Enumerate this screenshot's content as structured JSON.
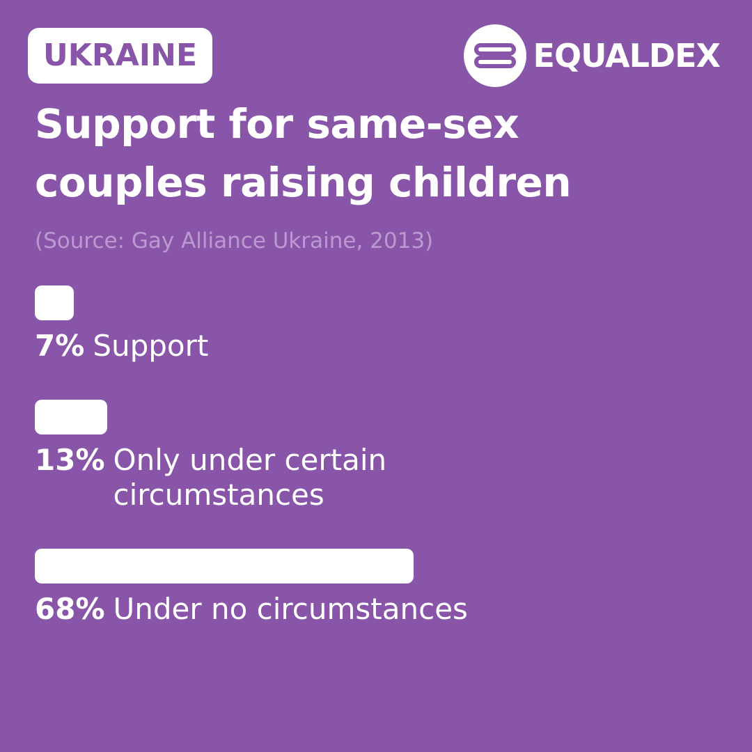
{
  "chart_data": {
    "type": "bar",
    "orientation": "horizontal",
    "badge": "UKRAINE",
    "logo": "EQUALDEX",
    "title": "Support for same-sex couples raising children",
    "subtitle": "(Source: Gay Alliance Ukraine, 2013)",
    "categories": [
      "Support",
      "Only under certain circumstances",
      "Under no circumstances"
    ],
    "values": [
      7,
      13,
      68
    ],
    "value_labels": [
      "7%",
      "13%",
      "68%"
    ],
    "color": "#ffffff"
  }
}
